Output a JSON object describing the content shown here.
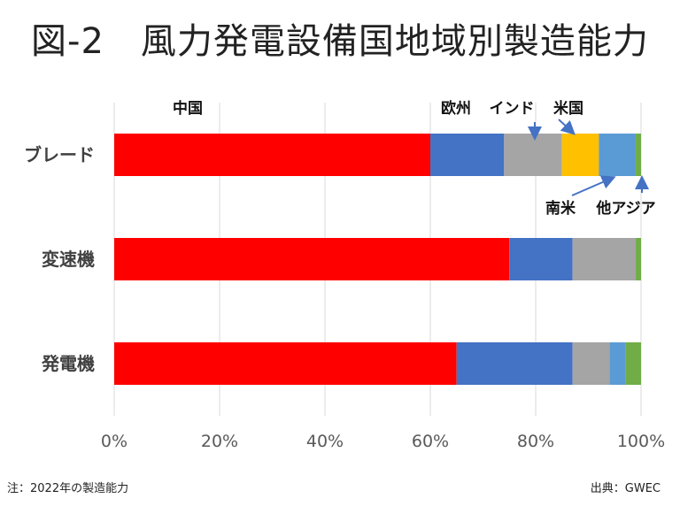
{
  "title": "図-2　風力発電設備国地域別製造能力",
  "note": "注：2022年の製造能力",
  "source": "出典：GWEC",
  "colors": {
    "中国": "#ff0000",
    "欧州": "#4472c4",
    "インド": "#a5a5a5",
    "米国": "#ffc000",
    "南米": "#5b9bd5",
    "他アジア": "#70ad47",
    "grid": "#d9d9d9",
    "arrow": "#4472c4"
  },
  "chart_data": {
    "type": "bar",
    "orientation": "horizontal",
    "stacked": true,
    "percent": true,
    "categories": [
      "ブレード",
      "変速機",
      "発電機"
    ],
    "xlim": [
      0,
      100
    ],
    "xticks": [
      "0%",
      "20%",
      "40%",
      "60%",
      "80%",
      "100%"
    ],
    "grid": true,
    "series": [
      {
        "name": "中国",
        "values": [
          60,
          75,
          65
        ]
      },
      {
        "name": "欧州",
        "values": [
          14,
          12,
          22
        ]
      },
      {
        "name": "インド",
        "values": [
          11,
          12,
          7
        ]
      },
      {
        "name": "米国",
        "values": [
          7,
          0,
          0
        ]
      },
      {
        "name": "南米",
        "values": [
          7,
          0,
          3
        ]
      },
      {
        "name": "他アジア",
        "values": [
          1,
          1,
          3
        ]
      }
    ],
    "labels": {
      "中国": "中国",
      "欧州": "欧州",
      "インド": "インド",
      "米国": "米国",
      "南米": "南米",
      "他アジア": "他アジア"
    }
  }
}
